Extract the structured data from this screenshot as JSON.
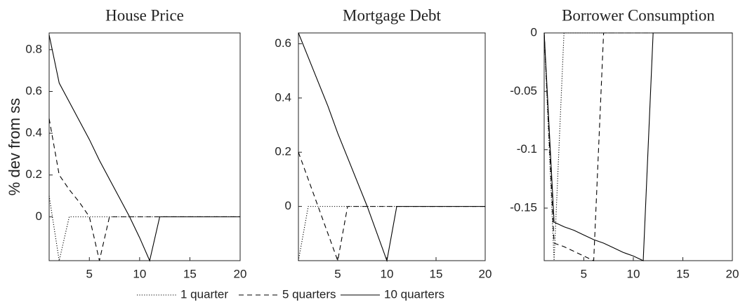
{
  "chart_data": [
    {
      "type": "line",
      "title": "House Price",
      "y_label": "% dev from ss",
      "x": [
        1,
        2,
        3,
        4,
        5,
        6,
        7,
        8,
        9,
        10,
        11,
        12,
        13,
        14,
        15,
        16,
        17,
        18,
        19,
        20
      ],
      "xlim": [
        1,
        20
      ],
      "xticks": [
        5,
        10,
        15,
        20
      ],
      "ylim": [
        -0.21,
        0.88
      ],
      "yticks": [
        0,
        0.2,
        0.4,
        0.6,
        0.8
      ],
      "series": [
        {
          "name": "1 quarter",
          "color": "#000000",
          "style": "dotted",
          "values": [
            0.1,
            -0.21,
            0,
            0,
            0,
            0,
            0,
            0,
            0,
            0,
            0,
            0,
            0,
            0,
            0,
            0,
            0,
            0,
            0,
            0
          ]
        },
        {
          "name": "5 quarters",
          "color": "#000000",
          "style": "dashed",
          "values": [
            0.47,
            0.2,
            0.13,
            0.07,
            0,
            -0.21,
            0,
            0,
            0,
            0,
            0,
            0,
            0,
            0,
            0,
            0,
            0,
            0,
            0,
            0
          ]
        },
        {
          "name": "10 quarters",
          "color": "#000000",
          "style": "solid",
          "values": [
            0.87,
            0.64,
            0.55,
            0.46,
            0.37,
            0.27,
            0.18,
            0.09,
            0,
            -0.1,
            -0.21,
            0,
            0,
            0,
            0,
            0,
            0,
            0,
            0,
            0
          ]
        }
      ]
    },
    {
      "type": "line",
      "title": "Mortgage Debt",
      "x": [
        1,
        2,
        3,
        4,
        5,
        6,
        7,
        8,
        9,
        10,
        11,
        12,
        13,
        14,
        15,
        16,
        17,
        18,
        19,
        20
      ],
      "xlim": [
        1,
        20
      ],
      "xticks": [
        5,
        10,
        15,
        20
      ],
      "ylim": [
        -0.2,
        0.64
      ],
      "yticks": [
        0,
        0.2,
        0.4,
        0.6
      ],
      "series": [
        {
          "name": "1 quarter",
          "color": "#000000",
          "style": "dotted",
          "values": [
            -0.2,
            0,
            0,
            0,
            0,
            0,
            0,
            0,
            0,
            0,
            0,
            0,
            0,
            0,
            0,
            0,
            0,
            0,
            0,
            0
          ]
        },
        {
          "name": "5 quarters",
          "color": "#000000",
          "style": "dashed",
          "values": [
            0.2,
            0.1,
            0,
            -0.1,
            -0.2,
            0,
            0,
            0,
            0,
            0,
            0,
            0,
            0,
            0,
            0,
            0,
            0,
            0,
            0,
            0
          ]
        },
        {
          "name": "10 quarters",
          "color": "#000000",
          "style": "solid",
          "values": [
            0.64,
            0.55,
            0.46,
            0.37,
            0.27,
            0.18,
            0.09,
            0,
            -0.1,
            -0.2,
            0,
            0,
            0,
            0,
            0,
            0,
            0,
            0,
            0,
            0
          ]
        }
      ]
    },
    {
      "type": "line",
      "title": "Borrower Consumption",
      "x": [
        1,
        2,
        3,
        4,
        5,
        6,
        7,
        8,
        9,
        10,
        11,
        12,
        13,
        14,
        15,
        16,
        17,
        18,
        19,
        20
      ],
      "xlim": [
        1,
        20
      ],
      "xticks": [
        5,
        10,
        15,
        20
      ],
      "ylim": [
        -0.195,
        0
      ],
      "yticks": [
        -0.15,
        -0.1,
        -0.05,
        0
      ],
      "series": [
        {
          "name": "1 quarter",
          "color": "#000000",
          "style": "dotted",
          "values": [
            0,
            -0.195,
            0,
            0,
            0,
            0,
            0,
            0,
            0,
            0,
            0,
            0,
            0,
            0,
            0,
            0,
            0,
            0,
            0,
            0
          ]
        },
        {
          "name": "5 quarters",
          "color": "#000000",
          "style": "dashed",
          "values": [
            0,
            -0.18,
            -0.183,
            -0.187,
            -0.191,
            -0.195,
            0,
            0,
            0,
            0,
            0,
            0,
            0,
            0,
            0,
            0,
            0,
            0,
            0,
            0
          ]
        },
        {
          "name": "10 quarters",
          "color": "#000000",
          "style": "solid",
          "values": [
            0,
            -0.162,
            -0.166,
            -0.169,
            -0.173,
            -0.177,
            -0.18,
            -0.184,
            -0.188,
            -0.191,
            -0.195,
            0,
            0,
            0,
            0,
            0,
            0,
            0,
            0,
            0
          ]
        }
      ]
    }
  ]
}
